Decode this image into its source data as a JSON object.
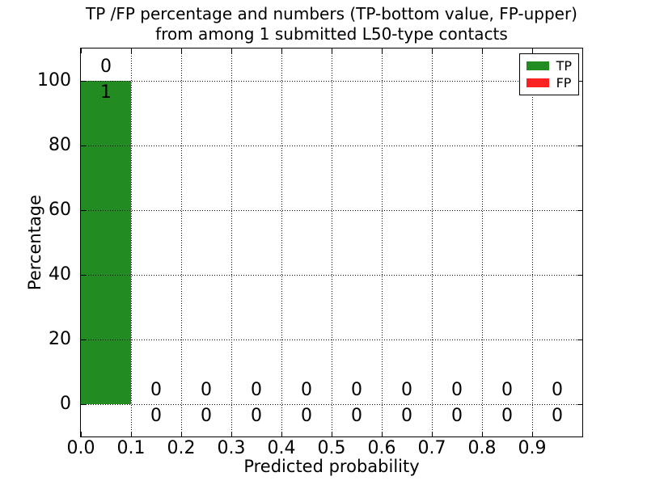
{
  "figure": {
    "title_line1": "TP /FP percentage and numbers (TP-bottom value, FP-upper)",
    "title_line2": "from among 1 submitted L50-type contacts",
    "xlabel": "Predicted probability",
    "ylabel": "Percentage"
  },
  "legend": {
    "position": "upper-right",
    "items": [
      {
        "label": "TP",
        "color": "#228b22"
      },
      {
        "label": "FP",
        "color": "#fb2121"
      }
    ]
  },
  "chart_data": {
    "type": "bar",
    "title": "TP /FP percentage and numbers (TP-bottom value, FP-upper)\nfrom among 1 submitted L50-type contacts",
    "xlabel": "Predicted probability",
    "ylabel": "Percentage",
    "xlim": [
      0.0,
      1.0
    ],
    "ylim": [
      -10,
      110
    ],
    "grid": true,
    "legend_position": "upper right",
    "bar_width": 0.1,
    "bin_starts": [
      0.0,
      0.1,
      0.2,
      0.3,
      0.4,
      0.5,
      0.6,
      0.7,
      0.8,
      0.9
    ],
    "xticks": [
      0.0,
      0.1,
      0.2,
      0.3,
      0.4,
      0.5,
      0.6,
      0.7,
      0.8,
      0.9
    ],
    "xtick_labels": [
      "0.0",
      "0.1",
      "0.2",
      "0.3",
      "0.4",
      "0.5",
      "0.6",
      "0.7",
      "0.8",
      "0.9"
    ],
    "yticks": [
      0,
      20,
      40,
      60,
      80,
      100
    ],
    "ytick_labels": [
      "0",
      "20",
      "40",
      "60",
      "80",
      "100"
    ],
    "series": [
      {
        "name": "TP",
        "color": "#228b22",
        "percent": [
          100,
          0,
          0,
          0,
          0,
          0,
          0,
          0,
          0,
          0
        ],
        "counts": [
          1,
          0,
          0,
          0,
          0,
          0,
          0,
          0,
          0,
          0
        ],
        "count_label_position": "below-bar-top"
      },
      {
        "name": "FP",
        "color": "#fb2121",
        "percent": [
          0,
          0,
          0,
          0,
          0,
          0,
          0,
          0,
          0,
          0
        ],
        "counts": [
          0,
          0,
          0,
          0,
          0,
          0,
          0,
          0,
          0,
          0
        ],
        "count_label_position": "above-bar-top"
      }
    ]
  }
}
